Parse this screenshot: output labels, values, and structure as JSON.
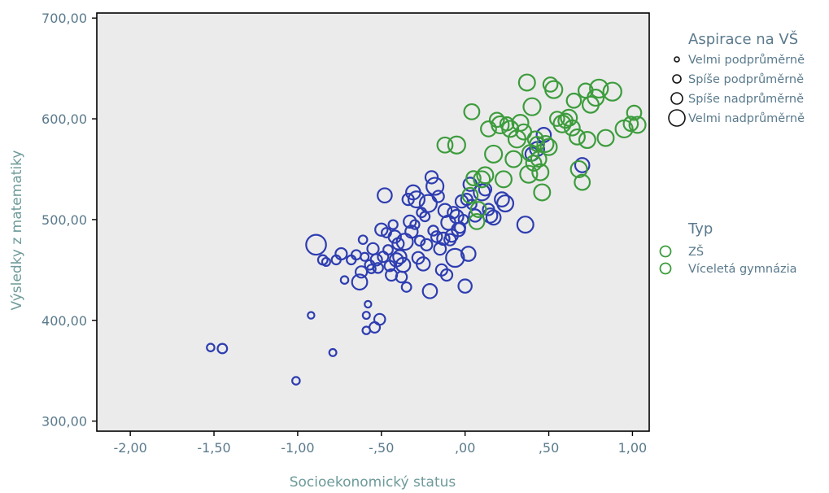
{
  "chart_data": {
    "type": "scatter",
    "xlabel": "Socioekonomický status",
    "ylabel": "Výsledky z matematiky",
    "xlim": [
      -2.2,
      1.1
    ],
    "ylim": [
      290,
      705
    ],
    "xticks": [
      -2.0,
      -1.5,
      -1.0,
      -0.5,
      0.0,
      0.5,
      1.0
    ],
    "xtick_labels": [
      "-2,00",
      "-1,50",
      "-1,00",
      "-,50",
      ",00",
      ",50",
      "1,00"
    ],
    "yticks": [
      300,
      400,
      500,
      600,
      700
    ],
    "ytick_labels": [
      "300,00",
      "400,00",
      "500,00",
      "600,00",
      "700,00"
    ],
    "grid": false,
    "plot_background": "#ebebeb",
    "size_legend": {
      "title": "Aspirace na VŠ",
      "items": [
        {
          "label": "Velmi podprůměrně",
          "level": 1
        },
        {
          "label": "Spíše podprůměrně",
          "level": 2
        },
        {
          "label": "Spíše nadprůměrně",
          "level": 3
        },
        {
          "label": "Velmi nadprůměrně",
          "level": 4
        }
      ]
    },
    "color_legend": {
      "title": "Typ",
      "items": [
        {
          "label": "ZŠ",
          "color": "#3c9c3c"
        },
        {
          "label": "Víceletá gymnázia",
          "color": "#3c9c3c"
        }
      ]
    },
    "series": [
      {
        "color": "#2e3db0",
        "points": [
          [
            -1.52,
            373,
            1.2
          ],
          [
            -1.45,
            372,
            1.6
          ],
          [
            -1.01,
            340,
            1.2
          ],
          [
            -0.79,
            368,
            1.1
          ],
          [
            -0.92,
            405,
            1.0
          ],
          [
            -0.89,
            475,
            3.8
          ],
          [
            -0.85,
            460,
            1.6
          ],
          [
            -0.83,
            458,
            1.3
          ],
          [
            -0.77,
            460,
            1.5
          ],
          [
            -0.74,
            466,
            2.0
          ],
          [
            -0.72,
            440,
            1.2
          ],
          [
            -0.68,
            460,
            1.5
          ],
          [
            -0.65,
            465,
            1.6
          ],
          [
            -0.63,
            438,
            2.8
          ],
          [
            -0.62,
            448,
            2.0
          ],
          [
            -0.61,
            480,
            1.4
          ],
          [
            -0.6,
            463,
            1.3
          ],
          [
            -0.59,
            405,
            1.1
          ],
          [
            -0.59,
            390,
            1.2
          ],
          [
            -0.58,
            416,
            1.0
          ],
          [
            -0.57,
            455,
            1.6
          ],
          [
            -0.56,
            451,
            1.4
          ],
          [
            -0.55,
            471,
            2.0
          ],
          [
            -0.54,
            393,
            1.8
          ],
          [
            -0.53,
            460,
            2.0
          ],
          [
            -0.52,
            452,
            1.7
          ],
          [
            -0.51,
            401,
            1.9
          ],
          [
            -0.5,
            490,
            2.2
          ],
          [
            -0.49,
            463,
            1.8
          ],
          [
            -0.48,
            524,
            2.6
          ],
          [
            -0.47,
            487,
            1.6
          ],
          [
            -0.46,
            470,
            1.6
          ],
          [
            -0.45,
            454,
            1.8
          ],
          [
            -0.44,
            445,
            2.0
          ],
          [
            -0.43,
            495,
            1.5
          ],
          [
            -0.42,
            483,
            2.2
          ],
          [
            -0.41,
            460,
            2.4
          ],
          [
            -0.4,
            476,
            2.0
          ],
          [
            -0.39,
            463,
            2.4
          ],
          [
            -0.38,
            443,
            1.9
          ],
          [
            -0.37,
            455,
            2.6
          ],
          [
            -0.36,
            478,
            3.0
          ],
          [
            -0.35,
            433,
            1.6
          ],
          [
            -0.34,
            520,
            2.0
          ],
          [
            -0.33,
            498,
            2.2
          ],
          [
            -0.32,
            488,
            2.2
          ],
          [
            -0.31,
            527,
            2.6
          ],
          [
            -0.3,
            495,
            1.5
          ],
          [
            -0.29,
            520,
            3.0
          ],
          [
            -0.28,
            462,
            2.1
          ],
          [
            -0.27,
            479,
            1.7
          ],
          [
            -0.26,
            507,
            1.6
          ],
          [
            -0.25,
            456,
            2.4
          ],
          [
            -0.24,
            503,
            1.6
          ],
          [
            -0.23,
            475,
            2.0
          ],
          [
            -0.22,
            516,
            3.2
          ],
          [
            -0.21,
            429,
            2.6
          ],
          [
            -0.2,
            542,
            2.2
          ],
          [
            -0.19,
            489,
            1.7
          ],
          [
            -0.18,
            533,
            3.2
          ],
          [
            -0.17,
            483,
            1.9
          ],
          [
            -0.16,
            523,
            2.0
          ],
          [
            -0.15,
            471,
            2.1
          ],
          [
            -0.14,
            450,
            2.0
          ],
          [
            -0.13,
            481,
            2.2
          ],
          [
            -0.12,
            509,
            2.4
          ],
          [
            -0.11,
            445,
            2.0
          ],
          [
            -0.1,
            497,
            2.6
          ],
          [
            -0.09,
            480,
            2.0
          ],
          [
            -0.08,
            484,
            2.2
          ],
          [
            -0.07,
            507,
            2.0
          ],
          [
            -0.06,
            462,
            3.4
          ],
          [
            -0.05,
            503,
            2.4
          ],
          [
            -0.04,
            490,
            2.4
          ],
          [
            -0.03,
            492,
            1.8
          ],
          [
            -0.02,
            518,
            2.2
          ],
          [
            -0.01,
            500,
            1.6
          ],
          [
            0.0,
            434,
            2.4
          ],
          [
            0.01,
            520,
            2.0
          ],
          [
            0.02,
            466,
            2.6
          ],
          [
            0.03,
            535,
            2.4
          ],
          [
            0.04,
            515,
            1.6
          ],
          [
            0.06,
            504,
            2.2
          ],
          [
            0.1,
            527,
            3.0
          ],
          [
            0.12,
            530,
            2.2
          ],
          [
            0.14,
            510,
            2.0
          ],
          [
            0.15,
            504,
            2.6
          ],
          [
            0.17,
            502,
            2.6
          ],
          [
            0.22,
            520,
            2.6
          ],
          [
            0.24,
            516,
            3.0
          ],
          [
            0.36,
            495,
            3.0
          ],
          [
            0.4,
            565,
            2.4
          ],
          [
            0.43,
            570,
            2.6
          ],
          [
            0.47,
            584,
            2.6
          ],
          [
            0.7,
            554,
            2.6
          ]
        ]
      },
      {
        "color": "#3c9c3c",
        "points": [
          [
            -0.12,
            574,
            2.8
          ],
          [
            -0.05,
            574,
            3.2
          ],
          [
            0.03,
            524,
            2.8
          ],
          [
            0.04,
            607,
            2.8
          ],
          [
            0.05,
            541,
            2.6
          ],
          [
            0.07,
            498,
            2.8
          ],
          [
            0.08,
            510,
            2.8
          ],
          [
            0.1,
            540,
            3.0
          ],
          [
            0.12,
            544,
            3.0
          ],
          [
            0.14,
            590,
            2.8
          ],
          [
            0.17,
            565,
            3.2
          ],
          [
            0.19,
            599,
            2.6
          ],
          [
            0.21,
            594,
            3.2
          ],
          [
            0.23,
            540,
            3.0
          ],
          [
            0.25,
            595,
            2.4
          ],
          [
            0.27,
            590,
            3.0
          ],
          [
            0.29,
            560,
            3.0
          ],
          [
            0.31,
            580,
            3.2
          ],
          [
            0.33,
            596,
            3.0
          ],
          [
            0.35,
            587,
            2.8
          ],
          [
            0.37,
            636,
            3.0
          ],
          [
            0.38,
            545,
            3.2
          ],
          [
            0.39,
            566,
            3.0
          ],
          [
            0.4,
            612,
            3.2
          ],
          [
            0.41,
            556,
            2.8
          ],
          [
            0.42,
            580,
            2.8
          ],
          [
            0.43,
            575,
            2.6
          ],
          [
            0.44,
            560,
            2.8
          ],
          [
            0.45,
            547,
            3.0
          ],
          [
            0.46,
            527,
            3.0
          ],
          [
            0.48,
            575,
            3.0
          ],
          [
            0.5,
            572,
            3.0
          ],
          [
            0.51,
            634,
            2.6
          ],
          [
            0.53,
            629,
            3.2
          ],
          [
            0.55,
            600,
            2.6
          ],
          [
            0.58,
            595,
            3.2
          ],
          [
            0.6,
            598,
            2.6
          ],
          [
            0.62,
            601,
            3.0
          ],
          [
            0.64,
            591,
            2.8
          ],
          [
            0.65,
            618,
            2.6
          ],
          [
            0.67,
            582,
            2.8
          ],
          [
            0.68,
            550,
            3.0
          ],
          [
            0.7,
            537,
            2.8
          ],
          [
            0.72,
            628,
            2.6
          ],
          [
            0.73,
            579,
            3.0
          ],
          [
            0.75,
            614,
            3.0
          ],
          [
            0.78,
            621,
            3.0
          ],
          [
            0.8,
            630,
            3.4
          ],
          [
            0.84,
            581,
            3.0
          ],
          [
            0.88,
            627,
            3.4
          ],
          [
            0.95,
            590,
            3.2
          ],
          [
            0.99,
            595,
            2.6
          ],
          [
            1.01,
            606,
            2.6
          ],
          [
            1.03,
            594,
            3.0
          ]
        ]
      }
    ]
  }
}
